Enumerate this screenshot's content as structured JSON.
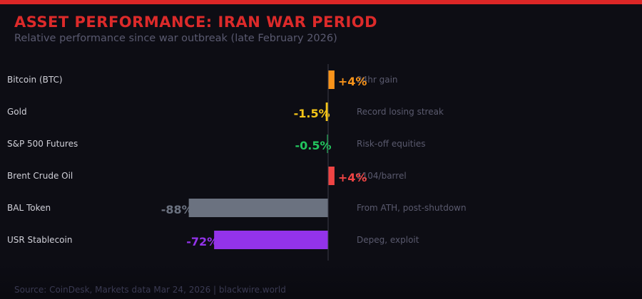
{
  "header": {
    "title": "ASSET PERFORMANCE: IRAN WAR PERIOD",
    "subtitle": "Relative performance since war outbreak (late February 2026)"
  },
  "footer": {
    "source": "Source: CoinDesk, Markets data Mar 24, 2026 | blackwire.world"
  },
  "colors": {
    "accent": "#dc2626",
    "background": "#0d0d14"
  },
  "chart_data": {
    "type": "bar",
    "orientation": "horizontal",
    "categories": [
      "Bitcoin (BTC)",
      "Gold",
      "S&P 500 Futures",
      "Brent Crude Oil",
      "BAL Token",
      "USR Stablecoin"
    ],
    "values": [
      4,
      -1.5,
      -0.5,
      4,
      -88,
      -72
    ],
    "value_labels": [
      "+4%",
      "-1.5%",
      "-0.5%",
      "+4%",
      "-88%",
      "-72%"
    ],
    "notes": [
      "24hr gain",
      "Record losing streak",
      "Risk-off equities",
      "$104/barrel",
      "From ATH, post-shutdown",
      "Depeg, exploit"
    ],
    "colors": [
      "#f7931a",
      "#f5c518",
      "#22c55e",
      "#ef4444",
      "#6b7280",
      "#9333ea"
    ],
    "unit": "%",
    "grid": false
  }
}
